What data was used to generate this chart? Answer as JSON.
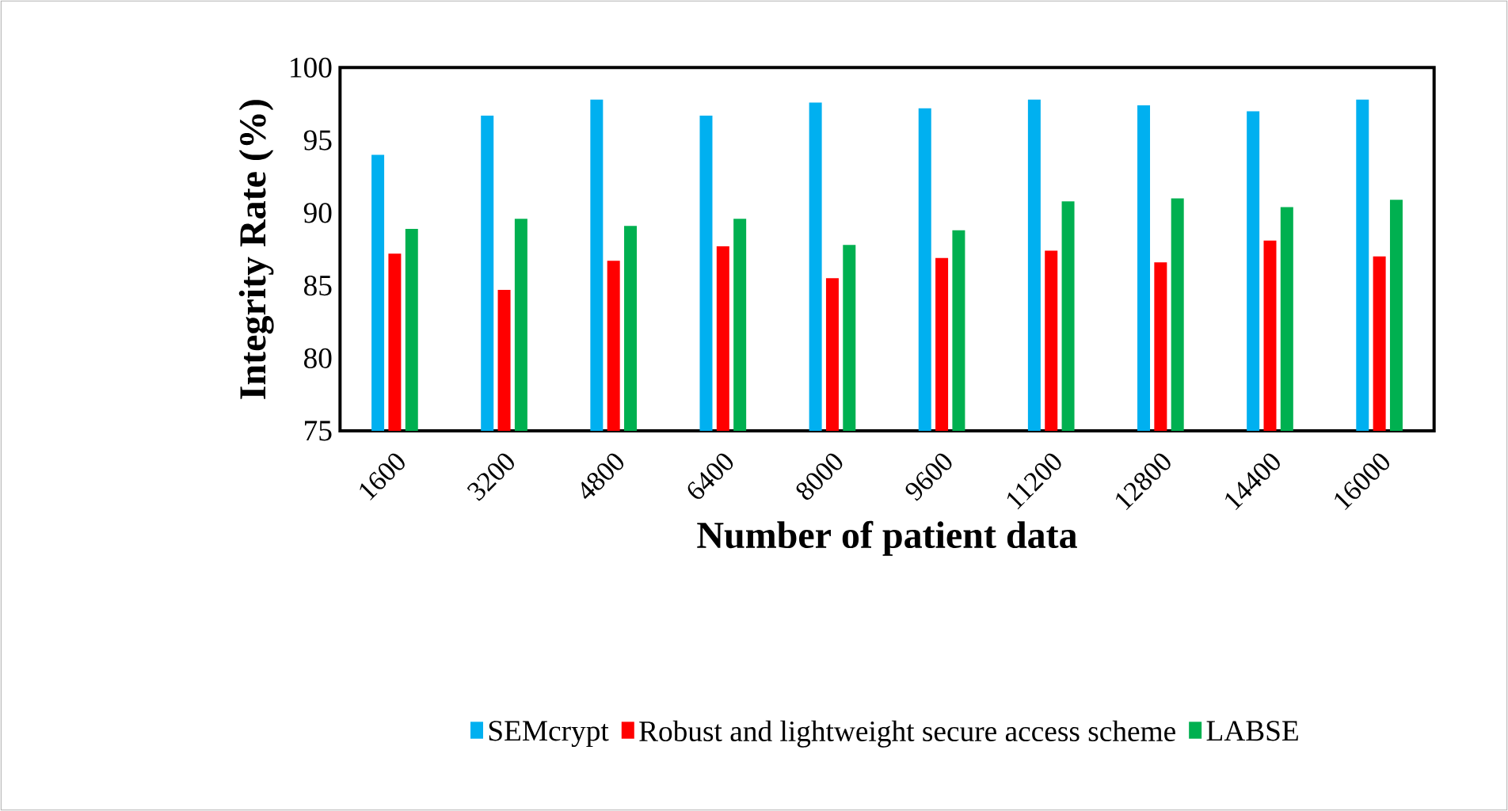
{
  "chart_data": {
    "type": "bar",
    "xlabel": "Number of patient data",
    "ylabel": "Integrity Rate (%)",
    "categories": [
      "1600",
      "3200",
      "4800",
      "6400",
      "8000",
      "9600",
      "11200",
      "12800",
      "14400",
      "16000"
    ],
    "series": [
      {
        "name": "SEMcrypt",
        "color": "#00b0f0",
        "values": [
          94,
          96.7,
          97.8,
          96.7,
          97.6,
          97.2,
          97.8,
          97.4,
          97,
          97.8
        ]
      },
      {
        "name": "Robust and lightweight secure access scheme",
        "color": "#ff0000",
        "values": [
          87.2,
          84.7,
          86.7,
          87.7,
          85.5,
          86.9,
          87.4,
          86.6,
          88.1,
          87
        ]
      },
      {
        "name": "LABSE",
        "color": "#00b050",
        "values": [
          88.9,
          89.6,
          89.1,
          89.6,
          87.8,
          88.8,
          90.8,
          91,
          90.4,
          90.9
        ]
      }
    ],
    "ylim": [
      75,
      100
    ],
    "yticks": [
      75,
      80,
      85,
      90,
      95,
      100
    ],
    "grid": false,
    "legend": "bottom"
  }
}
